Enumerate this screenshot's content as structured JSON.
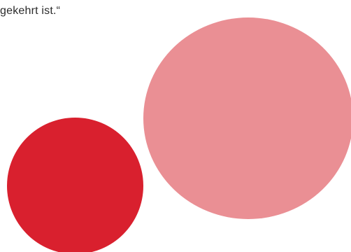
{
  "text": {
    "fragment": "gekehrt ist.“"
  },
  "shapes": {
    "large_circle_color": "#EA8F94",
    "small_circle_color": "#D9202E"
  }
}
